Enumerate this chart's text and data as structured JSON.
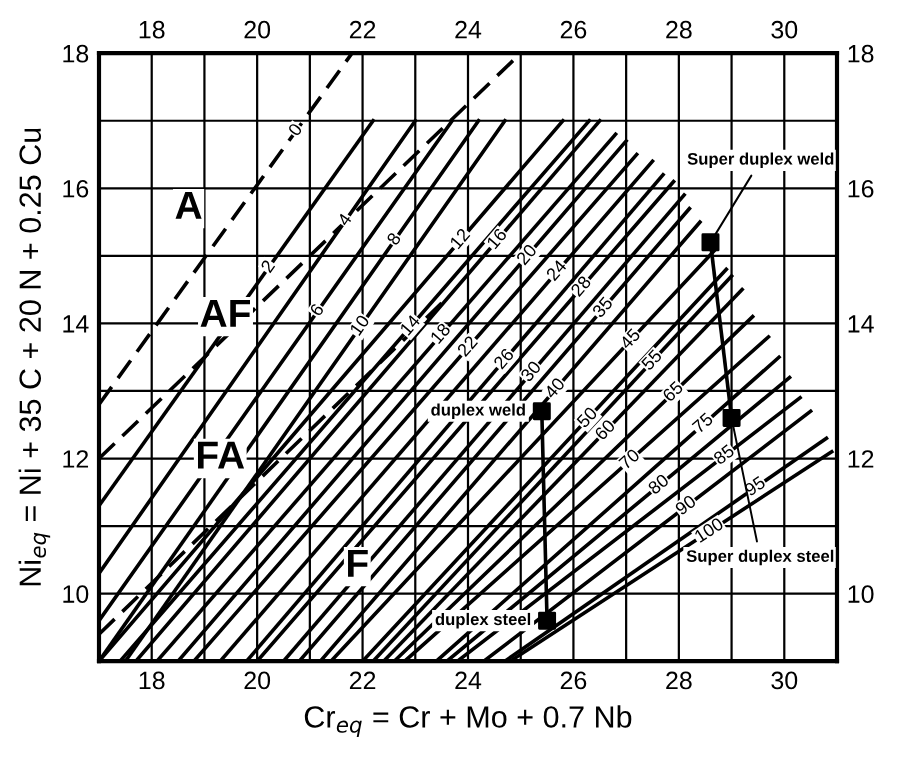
{
  "chart_data": {
    "type": "line",
    "xlabel": "Cr$_{eq}$ = Cr + Mo + 0.7 Nb",
    "ylabel": "Ni$_{eq}$ = Ni + 35 C + 20 N + 0.25 Cu",
    "xlim": [
      17,
      31
    ],
    "ylim": [
      9,
      18
    ],
    "xticks": [
      18,
      {
        "value": 19,
        "label": null
      },
      20,
      {
        "value": 21,
        "label": null
      },
      22,
      {
        "value": 23,
        "label": null
      },
      24,
      {
        "value": 25,
        "label": null
      },
      26,
      {
        "value": 27,
        "label": null
      },
      28,
      {
        "value": 29,
        "label": null
      },
      30
    ],
    "yticks": [
      10,
      {
        "value": 11,
        "label": null
      },
      12,
      {
        "value": 13,
        "label": null
      },
      14,
      {
        "value": 15,
        "label": null
      },
      16,
      {
        "value": 17,
        "label": null
      },
      18
    ],
    "x2lim": [
      17,
      31
    ],
    "x2ticks": [
      18,
      20,
      22,
      24,
      26,
      28,
      30
    ],
    "y2lim": [
      9,
      18
    ],
    "y2ticks": [
      10,
      12,
      14,
      16,
      18
    ],
    "grid": true,
    "marker": "none",
    "series": [
      {
        "name": "0",
        "color": "#000000",
        "line_style": "dashed",
        "x": [
          17,
          21.8
        ],
        "values": [
          12.8,
          18
        ]
      },
      {
        "name": "2",
        "color": "#000000",
        "x": [
          17,
          22.2
        ],
        "values": [
          11.3,
          17
        ]
      },
      {
        "name": "4",
        "color": "#000000",
        "x": [
          17,
          23.0
        ],
        "values": [
          10.3,
          17
        ]
      },
      {
        "name": "6",
        "color": "#000000",
        "x": [
          17,
          23.7
        ],
        "values": [
          9.6,
          17
        ]
      },
      {
        "name": "8",
        "color": "#000000",
        "x": [
          17.0,
          24.2
        ],
        "values": [
          9,
          17
        ]
      },
      {
        "name": "10",
        "color": "#000000",
        "x": [
          17.5,
          24.7
        ],
        "values": [
          9,
          17
        ]
      },
      {
        "name": "12",
        "color": "#000000",
        "x": [
          17.0,
          25.8
        ],
        "values": [
          9,
          17
        ]
      },
      {
        "name": "14",
        "color": "#000000",
        "x": [
          17.4,
          26.3
        ],
        "values": [
          9,
          17
        ]
      },
      {
        "name": "16",
        "color": "#000000",
        "x": [
          17.7,
          26.5
        ],
        "values": [
          9,
          17
        ]
      },
      {
        "name": "18",
        "color": "#000000",
        "x": [
          18.1,
          26.8
        ],
        "values": [
          9,
          16.8
        ]
      },
      {
        "name": "20",
        "color": "#000000",
        "x": [
          18.5,
          27.0
        ],
        "values": [
          9,
          16.7
        ]
      },
      {
        "name": "22",
        "color": "#000000",
        "x": [
          18.8,
          27.2
        ],
        "values": [
          9,
          16.5
        ]
      },
      {
        "name": "24",
        "color": "#000000",
        "x": [
          19.3,
          27.5
        ],
        "values": [
          9,
          16.4
        ]
      },
      {
        "name": "26",
        "color": "#000000",
        "x": [
          19.8,
          27.7
        ],
        "values": [
          9,
          16.2
        ]
      },
      {
        "name": "28",
        "color": "#000000",
        "x": [
          20.0,
          27.9
        ],
        "values": [
          9,
          16.1
        ]
      },
      {
        "name": "30",
        "color": "#000000",
        "x": [
          20.5,
          28.1
        ],
        "values": [
          9,
          15.9
        ]
      },
      {
        "name": "35",
        "color": "#000000",
        "x": [
          20.8,
          28.2
        ],
        "values": [
          9,
          15.7
        ]
      },
      {
        "name": "40",
        "color": "#000000",
        "x": [
          21.2,
          28.4
        ],
        "values": [
          9,
          15.5
        ]
      },
      {
        "name": "45",
        "color": "#000000",
        "x": [
          21.4,
          28.7
        ],
        "values": [
          9,
          15.1
        ]
      },
      {
        "name": "50",
        "color": "#000000",
        "x": [
          22.0,
          28.9
        ],
        "values": [
          9,
          14.8
        ]
      },
      {
        "name": "55",
        "color": "#000000",
        "x": [
          22.2,
          29.0
        ],
        "values": [
          9,
          14.7
        ]
      },
      {
        "name": "60",
        "color": "#000000",
        "x": [
          22.4,
          29.2
        ],
        "values": [
          9,
          14.5
        ]
      },
      {
        "name": "65",
        "color": "#000000",
        "x": [
          22.6,
          29.4
        ],
        "values": [
          9,
          14.1
        ]
      },
      {
        "name": "70",
        "color": "#000000",
        "x": [
          22.8,
          29.7
        ],
        "values": [
          9,
          13.8
        ]
      },
      {
        "name": "75",
        "color": "#000000",
        "x": [
          23.4,
          29.9
        ],
        "values": [
          9,
          13.5
        ]
      },
      {
        "name": "80",
        "color": "#000000",
        "x": [
          23.6,
          30.1
        ],
        "values": [
          9,
          13.2
        ]
      },
      {
        "name": "85",
        "color": "#000000",
        "x": [
          23.8,
          30.3
        ],
        "values": [
          9,
          12.9
        ]
      },
      {
        "name": "90",
        "color": "#000000",
        "x": [
          24.3,
          30.5
        ],
        "values": [
          9,
          12.7
        ]
      },
      {
        "name": "95",
        "color": "#000000",
        "x": [
          24.7,
          30.8
        ],
        "values": [
          9,
          12.3
        ]
      },
      {
        "name": "100",
        "color": "#000000",
        "x": [
          24.8,
          30.9
        ],
        "values": [
          9,
          12.1
        ]
      },
      {
        "color": "#000000",
        "line_style": "dashed",
        "x": [
          17,
          25.0
        ],
        "values": [
          12.0,
          18
        ]
      },
      {
        "color": "#000000",
        "line_style": "dashed",
        "x": [
          17,
          23.5
        ],
        "values": [
          9.4,
          14.3
        ]
      },
      {
        "color": "#000000",
        "x": [
          25.4,
          25.5
        ],
        "values": [
          12.7,
          9.6
        ]
      },
      {
        "color": "#000000",
        "x": [
          28.6,
          29.0
        ],
        "values": [
          15.2,
          12.6
        ]
      },
      {
        "type": "scatter",
        "marker": "square",
        "color": "#000000",
        "x": [
          25.4,
          25.5,
          28.6,
          29.0
        ],
        "values": [
          12.7,
          9.6,
          15.2,
          12.6
        ]
      }
    ],
    "annotations": [
      {
        "text": "A",
        "x": 18.7,
        "y": 15.7
      },
      {
        "text": "AF",
        "x": 19.4,
        "y": 14.1
      },
      {
        "text": "FA",
        "x": 19.3,
        "y": 12.0
      },
      {
        "text": "F",
        "x": 21.9,
        "y": 10.4
      },
      {
        "text": "duplex weld",
        "x": 25.4,
        "y": 12.7
      },
      {
        "text": "duplex steel",
        "x": 25.5,
        "y": 9.6
      },
      {
        "text": "Super duplex weld",
        "x": 28.6,
        "y": 15.2
      },
      {
        "text": "Super duplex steel",
        "x": 29.0,
        "y": 12.6
      }
    ]
  }
}
